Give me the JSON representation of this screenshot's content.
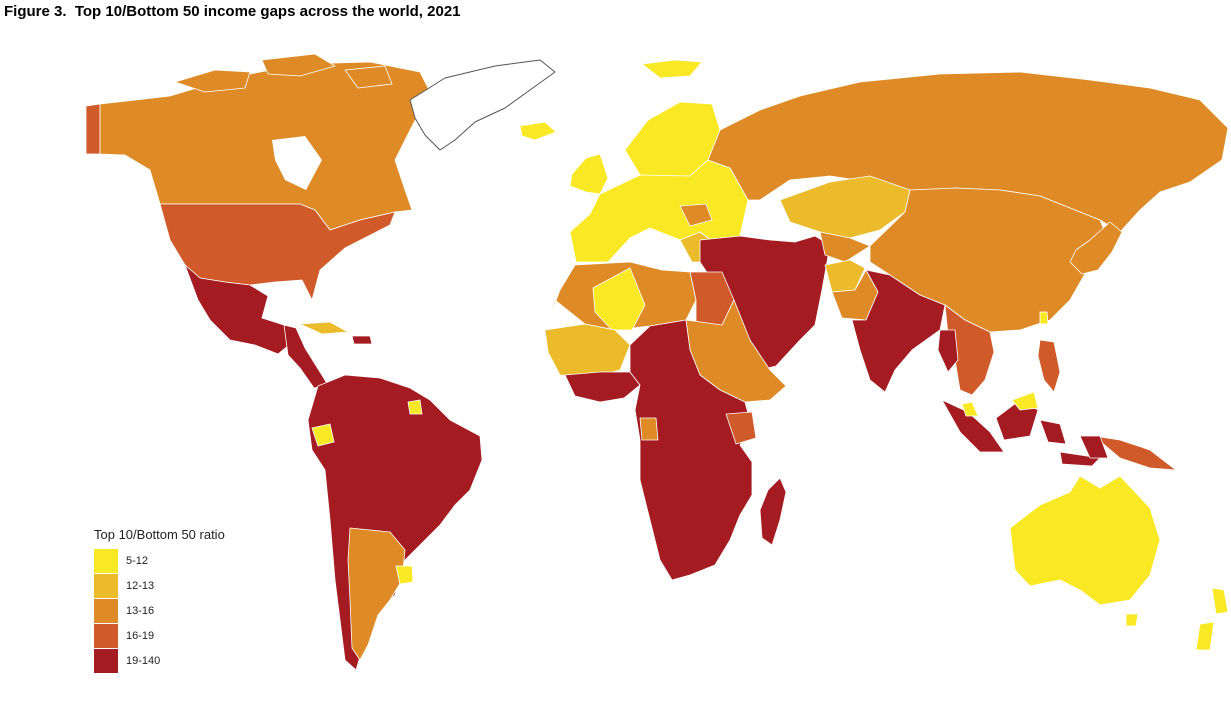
{
  "figure": {
    "title": "Figure 3.  Top 10/Bottom 50 income gaps across the world, 2021"
  },
  "colors": {
    "background": "#ffffff",
    "country_border": "#ffffff",
    "no_data_outline": "#555555"
  },
  "legend": {
    "title": "Top 10/Bottom 50 ratio",
    "items": [
      {
        "label": "5-12",
        "color": "#f9e924"
      },
      {
        "label": "12-13",
        "color": "#ebbb2b"
      },
      {
        "label": "13-16",
        "color": "#de8b27"
      },
      {
        "label": "16-19",
        "color": "#d05a29"
      },
      {
        "label": "19-140",
        "color": "#a41c22"
      }
    ]
  }
}
